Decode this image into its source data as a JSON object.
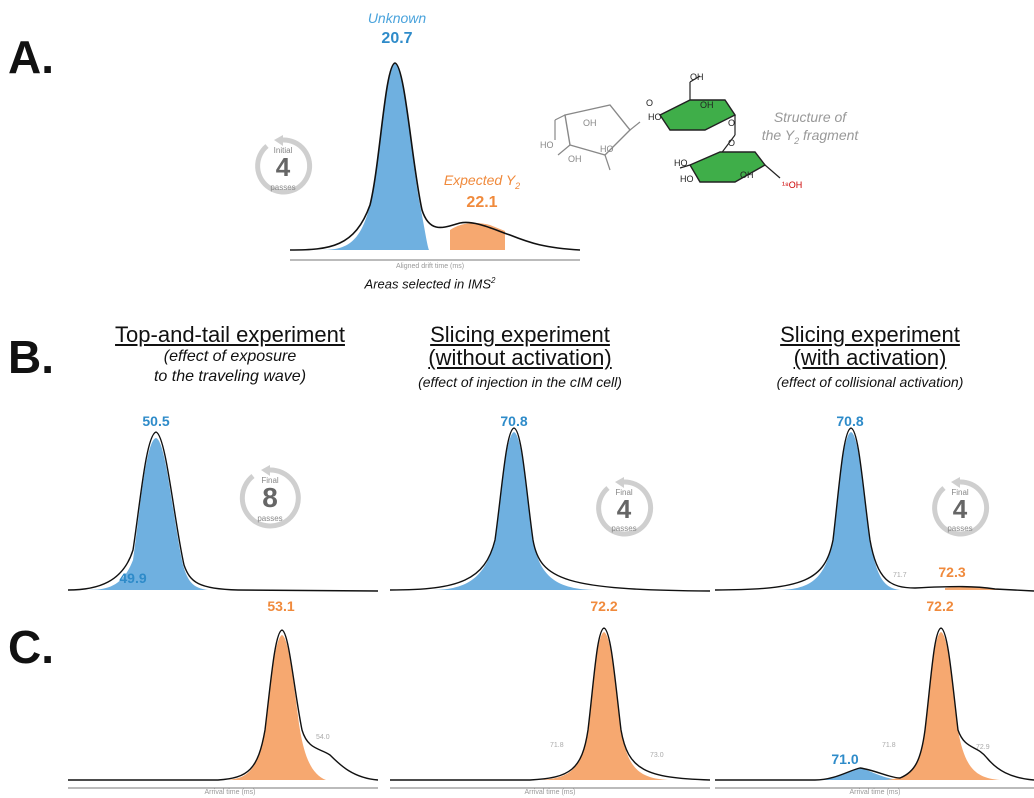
{
  "panels": {
    "A": {
      "letter": "A.",
      "unknown_label": "Unknown",
      "unknown_value": "20.7",
      "expected_label": "Expected Y",
      "expected_sub": "2",
      "expected_value": "22.1",
      "axis_label": "Aligned drift time (ms)",
      "caption": "Areas selected in IMS",
      "caption_sup": "2",
      "passes": {
        "top": "Initial",
        "num": "4",
        "bottom": "passes"
      },
      "structure_label_line1": "Structure of",
      "structure_label_line2_pre": "the Y",
      "structure_label_sub": "2",
      "structure_label_line2_post": " fragment"
    },
    "B": {
      "letter": "B.",
      "col1": {
        "title": "Top-and-tail experiment",
        "sub1": "(effect of exposure",
        "sub2": "to the traveling wave)",
        "peak_main": "50.5",
        "peak_minor": "49.9",
        "passes": {
          "top": "Final",
          "num": "8",
          "bottom": "passes"
        }
      },
      "col2": {
        "title": "Slicing experiment",
        "sub1": "(without activation)",
        "sub2": "(effect of injection in the cIM cell)",
        "peak_main": "70.8",
        "passes": {
          "top": "Final",
          "num": "4",
          "bottom": "passes"
        }
      },
      "col3": {
        "title": "Slicing experiment",
        "sub1": "(with activation)",
        "sub2": "(effect of collisional activation)",
        "peak_main": "70.8",
        "peak_small": "72.3",
        "peak_tiny": "71.7",
        "passes": {
          "top": "Final",
          "num": "4",
          "bottom": "passes"
        }
      }
    },
    "C": {
      "letter": "C.",
      "col1": {
        "peak_main": "53.1",
        "shoulder": "54.0",
        "axis_label": "Arrival time (ms)"
      },
      "col2": {
        "peak_main": "72.2",
        "left_ann": "71.8",
        "right_ann": "73.0",
        "axis_label": "Arrival time (ms)"
      },
      "col3": {
        "peak_main": "72.2",
        "peak_blue": "71.0",
        "left_ann": "71.8",
        "right_ann": "72.9",
        "axis_label": "Arrival time (ms)"
      }
    }
  },
  "chem_labels": {
    "oh": "OH",
    "ho": "HO",
    "o": "O",
    "i8oh": "¹⁸OH"
  },
  "colors": {
    "blue": "#6fb0e0",
    "orange": "#f6a870",
    "green": "#3fae49",
    "text_blue": "#2e8bc9",
    "text_orange": "#f08a3c"
  }
}
